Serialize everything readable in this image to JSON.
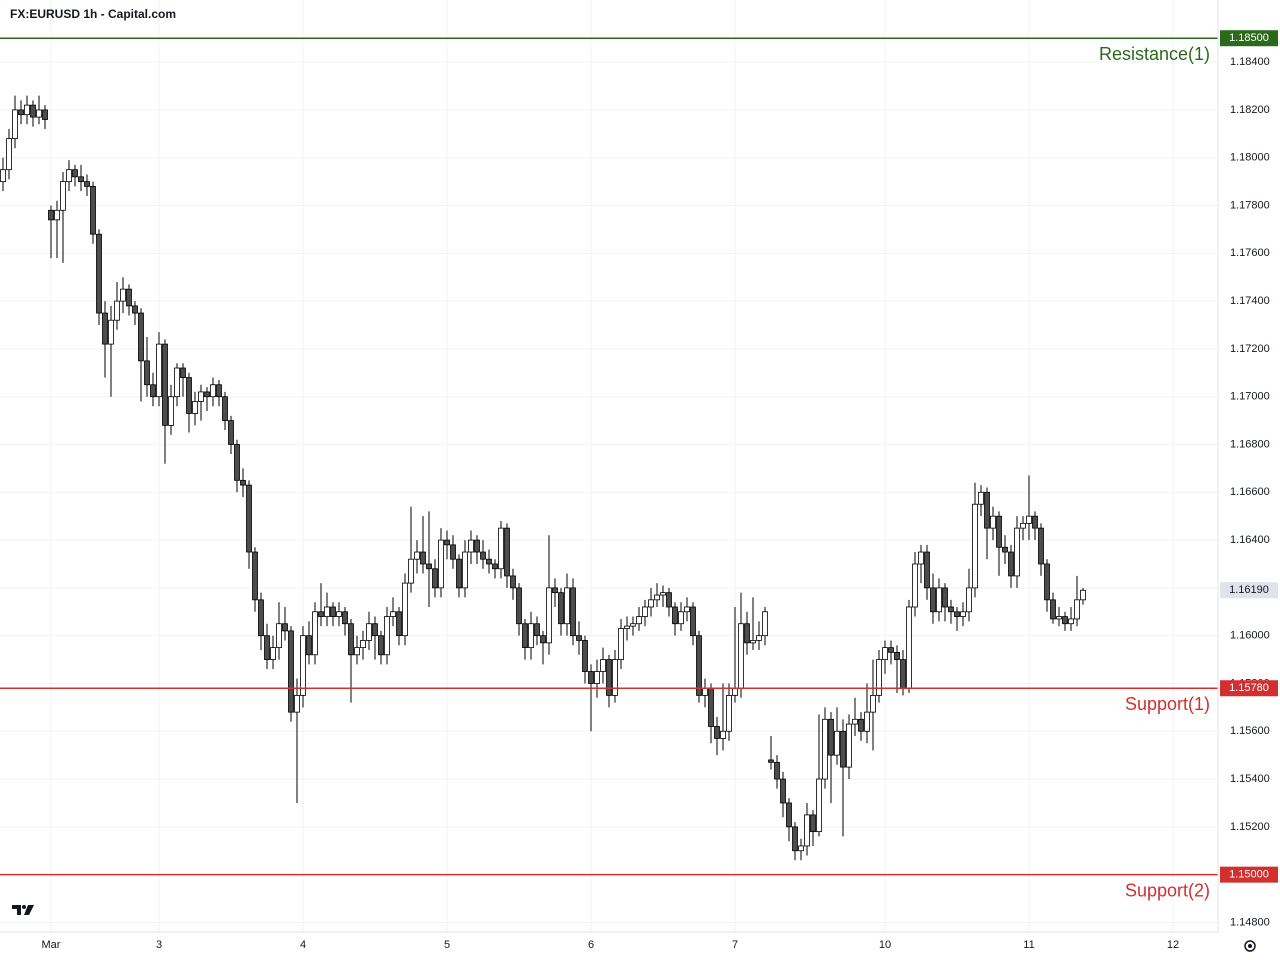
{
  "chart_data": {
    "type": "candlestick",
    "title": "FX:EURUSD 1h - Capital.com",
    "up_color": "#ffffff",
    "down_color": "#4d4d4d",
    "wick_color": "#000000",
    "grid": true,
    "ylim": [
      1.1476,
      1.1866
    ],
    "yticks": [
      {
        "value": 1.148,
        "label": "1.14800"
      },
      {
        "value": 1.15,
        "label": "1.15000"
      },
      {
        "value": 1.152,
        "label": "1.15200"
      },
      {
        "value": 1.154,
        "label": "1.15400"
      },
      {
        "value": 1.156,
        "label": "1.15600"
      },
      {
        "value": 1.158,
        "label": "1.15800"
      },
      {
        "value": 1.16,
        "label": "1.16000"
      },
      {
        "value": 1.162,
        "label": "1.16200"
      },
      {
        "value": 1.164,
        "label": "1.16400"
      },
      {
        "value": 1.166,
        "label": "1.16600"
      },
      {
        "value": 1.168,
        "label": "1.16800"
      },
      {
        "value": 1.17,
        "label": "1.17000"
      },
      {
        "value": 1.172,
        "label": "1.17200"
      },
      {
        "value": 1.174,
        "label": "1.17400"
      },
      {
        "value": 1.176,
        "label": "1.17600"
      },
      {
        "value": 1.178,
        "label": "1.17800"
      },
      {
        "value": 1.18,
        "label": "1.18000"
      },
      {
        "value": 1.182,
        "label": "1.18200"
      },
      {
        "value": 1.184,
        "label": "1.18400"
      }
    ],
    "levels": [
      {
        "name": "Resistance(1)",
        "value": 1.185,
        "label": "1.18500",
        "color": "#2b6a1a"
      },
      {
        "name": "Support(1)",
        "value": 1.1578,
        "label": "1.15780",
        "color": "#d32f2f"
      },
      {
        "name": "Support(2)",
        "value": 1.15,
        "label": "1.15000",
        "color": "#d32f2f"
      }
    ],
    "last_price": {
      "value": 1.1619,
      "label": "1.16190",
      "color": "#e0e3eb"
    },
    "categories": [
      null,
      null,
      null,
      null,
      null,
      null,
      null,
      null,
      "Mar",
      null,
      null,
      null,
      null,
      null,
      null,
      null,
      null,
      null,
      null,
      null,
      null,
      null,
      null,
      null,
      null,
      null,
      "3",
      null,
      null,
      null,
      null,
      null,
      null,
      null,
      null,
      null,
      null,
      null,
      null,
      null,
      null,
      null,
      null,
      null,
      null,
      null,
      null,
      null,
      null,
      null,
      "4",
      null,
      null,
      null,
      null,
      null,
      null,
      null,
      null,
      null,
      null,
      null,
      null,
      null,
      null,
      null,
      null,
      null,
      null,
      null,
      null,
      null,
      null,
      null,
      "5",
      null,
      null,
      null,
      null,
      null,
      null,
      null,
      null,
      null,
      null,
      null,
      null,
      null,
      null,
      null,
      null,
      null,
      null,
      null,
      null,
      null,
      null,
      null,
      "6",
      null,
      null,
      null,
      null,
      null,
      null,
      null,
      null,
      null,
      null,
      null,
      null,
      null,
      null,
      null,
      null,
      null,
      null,
      null,
      null,
      null,
      null,
      null,
      "7",
      null,
      null,
      null,
      null,
      null,
      null,
      null,
      null,
      null,
      null,
      null,
      null,
      null,
      null,
      null,
      null,
      null,
      null,
      null,
      null,
      null,
      null,
      null,
      null,
      "10",
      null,
      null,
      null,
      null,
      null,
      null,
      null,
      null,
      null,
      null,
      null,
      null,
      null,
      null,
      null,
      null,
      null,
      null,
      null,
      null,
      null,
      null,
      null,
      "11",
      null,
      null,
      null,
      null,
      null,
      null,
      null,
      null,
      null,
      null,
      null,
      null,
      null,
      null,
      null,
      null,
      null,
      null,
      null,
      null,
      null,
      null,
      null,
      "12"
    ],
    "ohlc": [
      [
        1.179,
        1.18,
        1.1786,
        1.1795
      ],
      [
        1.1795,
        1.1812,
        1.1791,
        1.1808
      ],
      [
        1.1808,
        1.1826,
        1.1804,
        1.182
      ],
      [
        1.182,
        1.1824,
        1.1814,
        1.1818
      ],
      [
        1.1818,
        1.1826,
        1.1814,
        1.1822
      ],
      [
        1.1822,
        1.1824,
        1.1813,
        1.1817
      ],
      [
        1.1817,
        1.1826,
        1.1814,
        1.182
      ],
      [
        1.182,
        1.1822,
        1.1812,
        1.1816
      ],
      [
        1.1778,
        1.178,
        1.1758,
        1.1774
      ],
      [
        1.1774,
        1.1782,
        1.1758,
        1.1778
      ],
      [
        1.1778,
        1.1794,
        1.1756,
        1.179
      ],
      [
        1.179,
        1.1799,
        1.1786,
        1.1795
      ],
      [
        1.1795,
        1.1797,
        1.1788,
        1.1792
      ],
      [
        1.1792,
        1.1797,
        1.1786,
        1.179
      ],
      [
        1.179,
        1.1793,
        1.1784,
        1.1788
      ],
      [
        1.1788,
        1.179,
        1.1764,
        1.1768
      ],
      [
        1.1768,
        1.177,
        1.173,
        1.1735
      ],
      [
        1.1735,
        1.174,
        1.1708,
        1.1722
      ],
      [
        1.1722,
        1.1738,
        1.17,
        1.1732
      ],
      [
        1.1732,
        1.1748,
        1.1728,
        1.174
      ],
      [
        1.174,
        1.175,
        1.1735,
        1.1745
      ],
      [
        1.1745,
        1.1747,
        1.1734,
        1.1738
      ],
      [
        1.1738,
        1.174,
        1.173,
        1.1735
      ],
      [
        1.1735,
        1.1737,
        1.1698,
        1.1715
      ],
      [
        1.1715,
        1.1725,
        1.17,
        1.1705
      ],
      [
        1.1705,
        1.171,
        1.1696,
        1.17
      ],
      [
        1.17,
        1.1727,
        1.1696,
        1.1722
      ],
      [
        1.1722,
        1.1724,
        1.1672,
        1.1688
      ],
      [
        1.1688,
        1.1705,
        1.1684,
        1.17
      ],
      [
        1.17,
        1.1714,
        1.1696,
        1.1712
      ],
      [
        1.1712,
        1.1714,
        1.17,
        1.1708
      ],
      [
        1.1708,
        1.171,
        1.1685,
        1.1693
      ],
      [
        1.1693,
        1.1702,
        1.1688,
        1.1698
      ],
      [
        1.1698,
        1.1705,
        1.169,
        1.1702
      ],
      [
        1.1702,
        1.1704,
        1.1694,
        1.17
      ],
      [
        1.17,
        1.1708,
        1.1696,
        1.1705
      ],
      [
        1.1705,
        1.1707,
        1.1696,
        1.17
      ],
      [
        1.17,
        1.1702,
        1.1686,
        1.169
      ],
      [
        1.169,
        1.1692,
        1.1676,
        1.168
      ],
      [
        1.168,
        1.1682,
        1.166,
        1.1665
      ],
      [
        1.1665,
        1.167,
        1.1658,
        1.1663
      ],
      [
        1.1663,
        1.1665,
        1.1628,
        1.1635
      ],
      [
        1.1635,
        1.1637,
        1.161,
        1.1615
      ],
      [
        1.1615,
        1.1618,
        1.1594,
        1.16
      ],
      [
        1.16,
        1.1605,
        1.1586,
        1.159
      ],
      [
        1.159,
        1.16,
        1.1586,
        1.1595
      ],
      [
        1.1595,
        1.1614,
        1.159,
        1.1605
      ],
      [
        1.1605,
        1.1612,
        1.1598,
        1.1602
      ],
      [
        1.1602,
        1.1604,
        1.1564,
        1.1568
      ],
      [
        1.1568,
        1.1582,
        1.153,
        1.1575
      ],
      [
        1.1575,
        1.1604,
        1.157,
        1.16
      ],
      [
        1.16,
        1.1606,
        1.1588,
        1.1592
      ],
      [
        1.1592,
        1.1614,
        1.1588,
        1.161
      ],
      [
        1.161,
        1.1622,
        1.1604,
        1.1608
      ],
      [
        1.1608,
        1.1618,
        1.1604,
        1.1612
      ],
      [
        1.1612,
        1.1614,
        1.1604,
        1.1608
      ],
      [
        1.1608,
        1.1614,
        1.1604,
        1.161
      ],
      [
        1.161,
        1.1612,
        1.16,
        1.1605
      ],
      [
        1.1605,
        1.1607,
        1.1572,
        1.1592
      ],
      [
        1.1592,
        1.16,
        1.1588,
        1.1595
      ],
      [
        1.1595,
        1.1602,
        1.159,
        1.1598
      ],
      [
        1.1598,
        1.161,
        1.1594,
        1.1605
      ],
      [
        1.1605,
        1.1608,
        1.159,
        1.16
      ],
      [
        1.16,
        1.1602,
        1.1588,
        1.1592
      ],
      [
        1.1592,
        1.1612,
        1.1588,
        1.1608
      ],
      [
        1.1608,
        1.1616,
        1.1604,
        1.161
      ],
      [
        1.161,
        1.1612,
        1.1596,
        1.16
      ],
      [
        1.16,
        1.1626,
        1.1596,
        1.1622
      ],
      [
        1.1622,
        1.1654,
        1.1618,
        1.1632
      ],
      [
        1.1632,
        1.164,
        1.1626,
        1.1635
      ],
      [
        1.1635,
        1.165,
        1.1626,
        1.163
      ],
      [
        1.163,
        1.1652,
        1.1612,
        1.1628
      ],
      [
        1.1628,
        1.1632,
        1.1616,
        1.162
      ],
      [
        1.162,
        1.1645,
        1.1616,
        1.164
      ],
      [
        1.164,
        1.1644,
        1.1632,
        1.1638
      ],
      [
        1.1638,
        1.1642,
        1.1628,
        1.1632
      ],
      [
        1.1632,
        1.1634,
        1.1616,
        1.162
      ],
      [
        1.162,
        1.164,
        1.1616,
        1.1635
      ],
      [
        1.1635,
        1.1644,
        1.163,
        1.164
      ],
      [
        1.164,
        1.1642,
        1.163,
        1.1635
      ],
      [
        1.1635,
        1.164,
        1.1628,
        1.1632
      ],
      [
        1.1632,
        1.1636,
        1.1626,
        1.163
      ],
      [
        1.163,
        1.1632,
        1.1624,
        1.1628
      ],
      [
        1.1628,
        1.1648,
        1.1624,
        1.1645
      ],
      [
        1.1645,
        1.1647,
        1.162,
        1.1625
      ],
      [
        1.1625,
        1.1628,
        1.1615,
        1.162
      ],
      [
        1.162,
        1.1622,
        1.16,
        1.1605
      ],
      [
        1.1605,
        1.1607,
        1.159,
        1.1595
      ],
      [
        1.1595,
        1.161,
        1.159,
        1.1605
      ],
      [
        1.1605,
        1.1608,
        1.1596,
        1.16
      ],
      [
        1.16,
        1.1602,
        1.1588,
        1.1597
      ],
      [
        1.1597,
        1.1642,
        1.1592,
        1.162
      ],
      [
        1.162,
        1.1624,
        1.1612,
        1.1618
      ],
      [
        1.1618,
        1.162,
        1.16,
        1.1605
      ],
      [
        1.1605,
        1.1626,
        1.16,
        1.162
      ],
      [
        1.162,
        1.1624,
        1.1596,
        1.16
      ],
      [
        1.16,
        1.1606,
        1.1592,
        1.1598
      ],
      [
        1.1598,
        1.16,
        1.158,
        1.1585
      ],
      [
        1.1585,
        1.1588,
        1.156,
        1.158
      ],
      [
        1.158,
        1.159,
        1.1574,
        1.1585
      ],
      [
        1.1585,
        1.1595,
        1.158,
        1.159
      ],
      [
        1.159,
        1.1592,
        1.157,
        1.1575
      ],
      [
        1.1575,
        1.1594,
        1.1572,
        1.159
      ],
      [
        1.159,
        1.1607,
        1.1586,
        1.1603
      ],
      [
        1.1603,
        1.1608,
        1.1598,
        1.1604
      ],
      [
        1.1604,
        1.1608,
        1.16,
        1.1605
      ],
      [
        1.1605,
        1.1612,
        1.1602,
        1.1608
      ],
      [
        1.1608,
        1.1615,
        1.1604,
        1.1612
      ],
      [
        1.1612,
        1.162,
        1.1608,
        1.1615
      ],
      [
        1.1615,
        1.1622,
        1.1612,
        1.1617
      ],
      [
        1.1617,
        1.1621,
        1.1612,
        1.1618
      ],
      [
        1.1618,
        1.162,
        1.1608,
        1.1612
      ],
      [
        1.1612,
        1.1614,
        1.16,
        1.1605
      ],
      [
        1.1605,
        1.1614,
        1.1602,
        1.161
      ],
      [
        1.161,
        1.1616,
        1.1606,
        1.1612
      ],
      [
        1.1612,
        1.1614,
        1.1596,
        1.16
      ],
      [
        1.16,
        1.1602,
        1.1572,
        1.1575
      ],
      [
        1.1575,
        1.1582,
        1.157,
        1.1578
      ],
      [
        1.1578,
        1.158,
        1.1555,
        1.1562
      ],
      [
        1.1562,
        1.1566,
        1.155,
        1.1557
      ],
      [
        1.1557,
        1.158,
        1.1552,
        1.156
      ],
      [
        1.156,
        1.158,
        1.1556,
        1.1575
      ],
      [
        1.1575,
        1.1612,
        1.1572,
        1.1578
      ],
      [
        1.1578,
        1.1618,
        1.1574,
        1.1605
      ],
      [
        1.1605,
        1.161,
        1.1592,
        1.1597
      ],
      [
        1.1597,
        1.1616,
        1.1594,
        1.1598
      ],
      [
        1.1598,
        1.1606,
        1.1594,
        1.16
      ],
      [
        1.16,
        1.1612,
        1.1596,
        1.161
      ],
      [
        1.1548,
        1.1558,
        1.1544,
        1.1547
      ],
      [
        1.1547,
        1.155,
        1.1536,
        1.154
      ],
      [
        1.154,
        1.1543,
        1.1524,
        1.153
      ],
      [
        1.153,
        1.1532,
        1.1514,
        1.152
      ],
      [
        1.152,
        1.1522,
        1.1506,
        1.151
      ],
      [
        1.151,
        1.1515,
        1.1506,
        1.1512
      ],
      [
        1.1512,
        1.153,
        1.1508,
        1.1525
      ],
      [
        1.1525,
        1.1527,
        1.1512,
        1.1518
      ],
      [
        1.1518,
        1.1567,
        1.1516,
        1.154
      ],
      [
        1.154,
        1.157,
        1.1536,
        1.1565
      ],
      [
        1.1565,
        1.1568,
        1.153,
        1.155
      ],
      [
        1.155,
        1.157,
        1.1546,
        1.156
      ],
      [
        1.156,
        1.1565,
        1.1516,
        1.1545
      ],
      [
        1.1545,
        1.1567,
        1.154,
        1.1563
      ],
      [
        1.1563,
        1.1574,
        1.1558,
        1.1565
      ],
      [
        1.1565,
        1.1568,
        1.1556,
        1.156
      ],
      [
        1.156,
        1.158,
        1.1555,
        1.1568
      ],
      [
        1.1568,
        1.159,
        1.1552,
        1.1575
      ],
      [
        1.1575,
        1.1594,
        1.1572,
        1.159
      ],
      [
        1.159,
        1.1598,
        1.1584,
        1.1595
      ],
      [
        1.1595,
        1.1598,
        1.1588,
        1.1593
      ],
      [
        1.1593,
        1.1596,
        1.1576,
        1.159
      ],
      [
        1.159,
        1.1594,
        1.1575,
        1.1578
      ],
      [
        1.1578,
        1.1615,
        1.1576,
        1.1612
      ],
      [
        1.1612,
        1.1635,
        1.1608,
        1.163
      ],
      [
        1.163,
        1.1638,
        1.1622,
        1.1635
      ],
      [
        1.1635,
        1.1638,
        1.1615,
        1.162
      ],
      [
        1.162,
        1.1626,
        1.1605,
        1.161
      ],
      [
        1.161,
        1.1624,
        1.1606,
        1.162
      ],
      [
        1.162,
        1.1622,
        1.1606,
        1.1612
      ],
      [
        1.1612,
        1.1615,
        1.1605,
        1.161
      ],
      [
        1.161,
        1.1612,
        1.1602,
        1.1608
      ],
      [
        1.1608,
        1.1614,
        1.1604,
        1.161
      ],
      [
        1.161,
        1.1628,
        1.1606,
        1.162
      ],
      [
        1.162,
        1.1664,
        1.1616,
        1.1655
      ],
      [
        1.1655,
        1.1663,
        1.165,
        1.166
      ],
      [
        1.166,
        1.1662,
        1.1632,
        1.1645
      ],
      [
        1.1645,
        1.1654,
        1.164,
        1.165
      ],
      [
        1.165,
        1.1652,
        1.1625,
        1.1637
      ],
      [
        1.1637,
        1.1642,
        1.163,
        1.1635
      ],
      [
        1.1635,
        1.1638,
        1.162,
        1.1625
      ],
      [
        1.1625,
        1.165,
        1.162,
        1.1645
      ],
      [
        1.1645,
        1.165,
        1.164,
        1.1647
      ],
      [
        1.1647,
        1.1667,
        1.164,
        1.165
      ],
      [
        1.165,
        1.1652,
        1.164,
        1.1645
      ],
      [
        1.1645,
        1.1647,
        1.1625,
        1.163
      ],
      [
        1.163,
        1.1632,
        1.161,
        1.1615
      ],
      [
        1.1615,
        1.1618,
        1.1605,
        1.1607
      ],
      [
        1.1607,
        1.1612,
        1.1604,
        1.1608
      ],
      [
        1.1608,
        1.161,
        1.1602,
        1.1605
      ],
      [
        1.1605,
        1.1612,
        1.1602,
        1.1607
      ],
      [
        1.1607,
        1.1625,
        1.1604,
        1.1615
      ],
      [
        1.1615,
        1.162,
        1.1613,
        1.1619
      ],
      null,
      null,
      null,
      null,
      null,
      null,
      null,
      null,
      null,
      null,
      null,
      null,
      null,
      null,
      null
    ]
  }
}
